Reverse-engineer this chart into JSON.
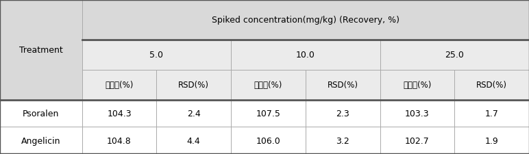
{
  "header_top": "Spiked concentration(mg/kg) (Recovery, %)",
  "col_group_labels": [
    "5.0",
    "10.0",
    "25.0"
  ],
  "col_sub_labels": [
    "회수율(%)",
    "RSD(%)",
    "회수율(%)",
    "RSD(%)",
    "회수율(%)",
    "RSD(%)"
  ],
  "row_label_header": "Treatment",
  "rows": [
    {
      "label": "Psoralen",
      "values": [
        "104.3",
        "2.4",
        "107.5",
        "2.3",
        "103.3",
        "1.7"
      ]
    },
    {
      "label": "Angelicin",
      "values": [
        "104.8",
        "4.4",
        "106.0",
        "3.2",
        "102.7",
        "1.9"
      ]
    }
  ],
  "bg_header": "#d9d9d9",
  "bg_subheader": "#ebebeb",
  "bg_data": "#ffffff",
  "border_color": "#aaaaaa",
  "thick_border_color": "#555555",
  "text_color": "#000000",
  "font_size": 9,
  "fig_width": 7.72,
  "fig_height": 2.26
}
